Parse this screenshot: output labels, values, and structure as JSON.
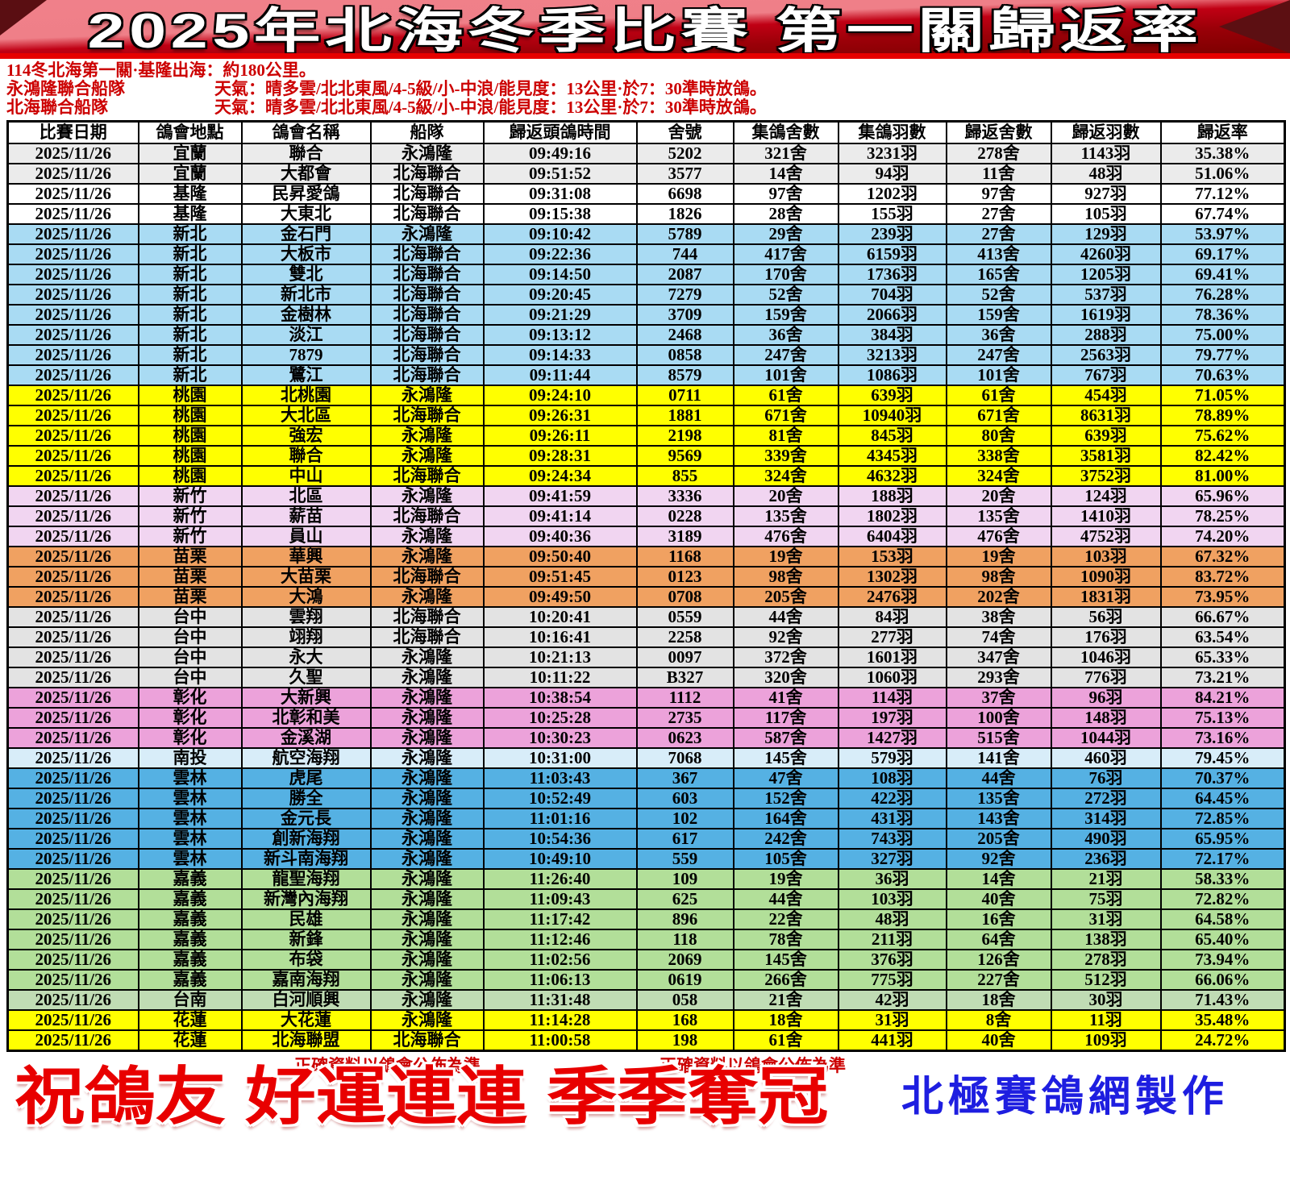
{
  "banner": {
    "title": "2025年北海冬季比賽 第一關歸返率",
    "colors": {
      "ribbon_light": "#ef7f88",
      "ribbon_dark": "#9a0008",
      "strip": "#e60000"
    }
  },
  "info": {
    "line1": "114冬北海第一關·基隆出海：約180公里。",
    "fleets": [
      {
        "name": "永鴻隆聯合船隊",
        "weather": "天氣：晴多雲/北北東風/4-5級/小-中浪/能見度：13公里·於7：30準時放鴿。"
      },
      {
        "name": "北海聯合船隊",
        "weather": "天氣：晴多雲/北北東風/4-5級/小-中浪/能見度：13公里·於7：30準時放鴿。"
      }
    ]
  },
  "region_colors": {
    "宜蘭": "#ebebeb",
    "基隆": "#ffffff",
    "新北": "#a9dbf3",
    "桃園": "#ffff00",
    "新竹": "#f1d5f1",
    "苗栗": "#f0a161",
    "台中": "#e3e3e3",
    "彰化": "#eca2da",
    "南投": "#d8edf9",
    "雲林": "#55b1e3",
    "嘉義": "#b2df99",
    "台南": "#c0dcb4",
    "花蓮": "#ffff00"
  },
  "table": {
    "headers": [
      "比賽日期",
      "鴿會地點",
      "鴿會名稱",
      "船隊",
      "歸返頭鴿時間",
      "舍號",
      "集鴿舍數",
      "集鴿羽數",
      "歸返舍數",
      "歸返羽數",
      "歸返率"
    ],
    "column_keys": [
      "date",
      "region",
      "club",
      "fleet",
      "time",
      "loft",
      "collect_sheds",
      "collect_birds",
      "return_sheds",
      "return_birds",
      "rate"
    ],
    "rows": [
      {
        "date": "2025/11/26",
        "region": "宜蘭",
        "club": "聯合",
        "fleet": "永鴻隆",
        "time": "09:49:16",
        "loft": "5202",
        "collect_sheds": "321舍",
        "collect_birds": "3231羽",
        "return_sheds": "278舍",
        "return_birds": "1143羽",
        "rate": "35.38%"
      },
      {
        "date": "2025/11/26",
        "region": "宜蘭",
        "club": "大都會",
        "fleet": "北海聯合",
        "time": "09:51:52",
        "loft": "3577",
        "collect_sheds": "14舍",
        "collect_birds": "94羽",
        "return_sheds": "11舍",
        "return_birds": "48羽",
        "rate": "51.06%"
      },
      {
        "date": "2025/11/26",
        "region": "基隆",
        "club": "民昇愛鴿",
        "fleet": "北海聯合",
        "time": "09:31:08",
        "loft": "6698",
        "collect_sheds": "97舍",
        "collect_birds": "1202羽",
        "return_sheds": "97舍",
        "return_birds": "927羽",
        "rate": "77.12%"
      },
      {
        "date": "2025/11/26",
        "region": "基隆",
        "club": "大東北",
        "fleet": "北海聯合",
        "time": "09:15:38",
        "loft": "1826",
        "collect_sheds": "28舍",
        "collect_birds": "155羽",
        "return_sheds": "27舍",
        "return_birds": "105羽",
        "rate": "67.74%"
      },
      {
        "date": "2025/11/26",
        "region": "新北",
        "club": "金石門",
        "fleet": "永鴻隆",
        "time": "09:10:42",
        "loft": "5789",
        "collect_sheds": "29舍",
        "collect_birds": "239羽",
        "return_sheds": "27舍",
        "return_birds": "129羽",
        "rate": "53.97%"
      },
      {
        "date": "2025/11/26",
        "region": "新北",
        "club": "大板市",
        "fleet": "北海聯合",
        "time": "09:22:36",
        "loft": "744",
        "collect_sheds": "417舍",
        "collect_birds": "6159羽",
        "return_sheds": "413舍",
        "return_birds": "4260羽",
        "rate": "69.17%"
      },
      {
        "date": "2025/11/26",
        "region": "新北",
        "club": "雙北",
        "fleet": "北海聯合",
        "time": "09:14:50",
        "loft": "2087",
        "collect_sheds": "170舍",
        "collect_birds": "1736羽",
        "return_sheds": "165舍",
        "return_birds": "1205羽",
        "rate": "69.41%"
      },
      {
        "date": "2025/11/26",
        "region": "新北",
        "club": "新北市",
        "fleet": "北海聯合",
        "time": "09:20:45",
        "loft": "7279",
        "collect_sheds": "52舍",
        "collect_birds": "704羽",
        "return_sheds": "52舍",
        "return_birds": "537羽",
        "rate": "76.28%"
      },
      {
        "date": "2025/11/26",
        "region": "新北",
        "club": "金樹林",
        "fleet": "北海聯合",
        "time": "09:21:29",
        "loft": "3709",
        "collect_sheds": "159舍",
        "collect_birds": "2066羽",
        "return_sheds": "159舍",
        "return_birds": "1619羽",
        "rate": "78.36%"
      },
      {
        "date": "2025/11/26",
        "region": "新北",
        "club": "淡江",
        "fleet": "北海聯合",
        "time": "09:13:12",
        "loft": "2468",
        "collect_sheds": "36舍",
        "collect_birds": "384羽",
        "return_sheds": "36舍",
        "return_birds": "288羽",
        "rate": "75.00%"
      },
      {
        "date": "2025/11/26",
        "region": "新北",
        "club": "7879",
        "fleet": "北海聯合",
        "time": "09:14:33",
        "loft": "0858",
        "collect_sheds": "247舍",
        "collect_birds": "3213羽",
        "return_sheds": "247舍",
        "return_birds": "2563羽",
        "rate": "79.77%"
      },
      {
        "date": "2025/11/26",
        "region": "新北",
        "club": "鷺江",
        "fleet": "北海聯合",
        "time": "09:11:44",
        "loft": "8579",
        "collect_sheds": "101舍",
        "collect_birds": "1086羽",
        "return_sheds": "101舍",
        "return_birds": "767羽",
        "rate": "70.63%"
      },
      {
        "date": "2025/11/26",
        "region": "桃園",
        "club": "北桃園",
        "fleet": "永鴻隆",
        "time": "09:24:10",
        "loft": "0711",
        "collect_sheds": "61舍",
        "collect_birds": "639羽",
        "return_sheds": "61舍",
        "return_birds": "454羽",
        "rate": "71.05%"
      },
      {
        "date": "2025/11/26",
        "region": "桃園",
        "club": "大北區",
        "fleet": "北海聯合",
        "time": "09:26:31",
        "loft": "1881",
        "collect_sheds": "671舍",
        "collect_birds": "10940羽",
        "return_sheds": "671舍",
        "return_birds": "8631羽",
        "rate": "78.89%"
      },
      {
        "date": "2025/11/26",
        "region": "桃園",
        "club": "強宏",
        "fleet": "永鴻隆",
        "time": "09:26:11",
        "loft": "2198",
        "collect_sheds": "81舍",
        "collect_birds": "845羽",
        "return_sheds": "80舍",
        "return_birds": "639羽",
        "rate": "75.62%"
      },
      {
        "date": "2025/11/26",
        "region": "桃園",
        "club": "聯合",
        "fleet": "永鴻隆",
        "time": "09:28:31",
        "loft": "9569",
        "collect_sheds": "339舍",
        "collect_birds": "4345羽",
        "return_sheds": "338舍",
        "return_birds": "3581羽",
        "rate": "82.42%"
      },
      {
        "date": "2025/11/26",
        "region": "桃園",
        "club": "中山",
        "fleet": "北海聯合",
        "time": "09:24:34",
        "loft": "855",
        "collect_sheds": "324舍",
        "collect_birds": "4632羽",
        "return_sheds": "324舍",
        "return_birds": "3752羽",
        "rate": "81.00%"
      },
      {
        "date": "2025/11/26",
        "region": "新竹",
        "club": "北區",
        "fleet": "永鴻隆",
        "time": "09:41:59",
        "loft": "3336",
        "collect_sheds": "20舍",
        "collect_birds": "188羽",
        "return_sheds": "20舍",
        "return_birds": "124羽",
        "rate": "65.96%"
      },
      {
        "date": "2025/11/26",
        "region": "新竹",
        "club": "薪苗",
        "fleet": "北海聯合",
        "time": "09:41:14",
        "loft": "0228",
        "collect_sheds": "135舍",
        "collect_birds": "1802羽",
        "return_sheds": "135舍",
        "return_birds": "1410羽",
        "rate": "78.25%"
      },
      {
        "date": "2025/11/26",
        "region": "新竹",
        "club": "員山",
        "fleet": "永鴻隆",
        "time": "09:40:36",
        "loft": "3189",
        "collect_sheds": "476舍",
        "collect_birds": "6404羽",
        "return_sheds": "476舍",
        "return_birds": "4752羽",
        "rate": "74.20%"
      },
      {
        "date": "2025/11/26",
        "region": "苗栗",
        "club": "華興",
        "fleet": "永鴻隆",
        "time": "09:50:40",
        "loft": "1168",
        "collect_sheds": "19舍",
        "collect_birds": "153羽",
        "return_sheds": "19舍",
        "return_birds": "103羽",
        "rate": "67.32%"
      },
      {
        "date": "2025/11/26",
        "region": "苗栗",
        "club": "大苗栗",
        "fleet": "北海聯合",
        "time": "09:51:45",
        "loft": "0123",
        "collect_sheds": "98舍",
        "collect_birds": "1302羽",
        "return_sheds": "98舍",
        "return_birds": "1090羽",
        "rate": "83.72%"
      },
      {
        "date": "2025/11/26",
        "region": "苗栗",
        "club": "大鴻",
        "fleet": "永鴻隆",
        "time": "09:49:50",
        "loft": "0708",
        "collect_sheds": "205舍",
        "collect_birds": "2476羽",
        "return_sheds": "202舍",
        "return_birds": "1831羽",
        "rate": "73.95%"
      },
      {
        "date": "2025/11/26",
        "region": "台中",
        "club": "雲翔",
        "fleet": "北海聯合",
        "time": "10:20:41",
        "loft": "0559",
        "collect_sheds": "44舍",
        "collect_birds": "84羽",
        "return_sheds": "38舍",
        "return_birds": "56羽",
        "rate": "66.67%"
      },
      {
        "date": "2025/11/26",
        "region": "台中",
        "club": "翊翔",
        "fleet": "北海聯合",
        "time": "10:16:41",
        "loft": "2258",
        "collect_sheds": "92舍",
        "collect_birds": "277羽",
        "return_sheds": "74舍",
        "return_birds": "176羽",
        "rate": "63.54%"
      },
      {
        "date": "2025/11/26",
        "region": "台中",
        "club": "永大",
        "fleet": "永鴻隆",
        "time": "10:21:13",
        "loft": "0097",
        "collect_sheds": "372舍",
        "collect_birds": "1601羽",
        "return_sheds": "347舍",
        "return_birds": "1046羽",
        "rate": "65.33%"
      },
      {
        "date": "2025/11/26",
        "region": "台中",
        "club": "久聖",
        "fleet": "永鴻隆",
        "time": "10:11:22",
        "loft": "B327",
        "collect_sheds": "320舍",
        "collect_birds": "1060羽",
        "return_sheds": "293舍",
        "return_birds": "776羽",
        "rate": "73.21%"
      },
      {
        "date": "2025/11/26",
        "region": "彰化",
        "club": "大新興",
        "fleet": "永鴻隆",
        "time": "10:38:54",
        "loft": "1112",
        "collect_sheds": "41舍",
        "collect_birds": "114羽",
        "return_sheds": "37舍",
        "return_birds": "96羽",
        "rate": "84.21%"
      },
      {
        "date": "2025/11/26",
        "region": "彰化",
        "club": "北彰和美",
        "fleet": "永鴻隆",
        "time": "10:25:28",
        "loft": "2735",
        "collect_sheds": "117舍",
        "collect_birds": "197羽",
        "return_sheds": "100舍",
        "return_birds": "148羽",
        "rate": "75.13%"
      },
      {
        "date": "2025/11/26",
        "region": "彰化",
        "club": "金溪湖",
        "fleet": "永鴻隆",
        "time": "10:30:23",
        "loft": "0623",
        "collect_sheds": "587舍",
        "collect_birds": "1427羽",
        "return_sheds": "515舍",
        "return_birds": "1044羽",
        "rate": "73.16%"
      },
      {
        "date": "2025/11/26",
        "region": "南投",
        "club": "航空海翔",
        "fleet": "永鴻隆",
        "time": "10:31:00",
        "loft": "7068",
        "collect_sheds": "145舍",
        "collect_birds": "579羽",
        "return_sheds": "141舍",
        "return_birds": "460羽",
        "rate": "79.45%"
      },
      {
        "date": "2025/11/26",
        "region": "雲林",
        "club": "虎尾",
        "fleet": "永鴻隆",
        "time": "11:03:43",
        "loft": "367",
        "collect_sheds": "47舍",
        "collect_birds": "108羽",
        "return_sheds": "44舍",
        "return_birds": "76羽",
        "rate": "70.37%"
      },
      {
        "date": "2025/11/26",
        "region": "雲林",
        "club": "勝全",
        "fleet": "永鴻隆",
        "time": "10:52:49",
        "loft": "603",
        "collect_sheds": "152舍",
        "collect_birds": "422羽",
        "return_sheds": "135舍",
        "return_birds": "272羽",
        "rate": "64.45%"
      },
      {
        "date": "2025/11/26",
        "region": "雲林",
        "club": "金元長",
        "fleet": "永鴻隆",
        "time": "11:01:16",
        "loft": "102",
        "collect_sheds": "164舍",
        "collect_birds": "431羽",
        "return_sheds": "143舍",
        "return_birds": "314羽",
        "rate": "72.85%"
      },
      {
        "date": "2025/11/26",
        "region": "雲林",
        "club": "創新海翔",
        "fleet": "永鴻隆",
        "time": "10:54:36",
        "loft": "617",
        "collect_sheds": "242舍",
        "collect_birds": "743羽",
        "return_sheds": "205舍",
        "return_birds": "490羽",
        "rate": "65.95%"
      },
      {
        "date": "2025/11/26",
        "region": "雲林",
        "club": "新斗南海翔",
        "fleet": "永鴻隆",
        "time": "10:49:10",
        "loft": "559",
        "collect_sheds": "105舍",
        "collect_birds": "327羽",
        "return_sheds": "92舍",
        "return_birds": "236羽",
        "rate": "72.17%"
      },
      {
        "date": "2025/11/26",
        "region": "嘉義",
        "club": "龍聖海翔",
        "fleet": "永鴻隆",
        "time": "11:26:40",
        "loft": "109",
        "collect_sheds": "19舍",
        "collect_birds": "36羽",
        "return_sheds": "14舍",
        "return_birds": "21羽",
        "rate": "58.33%"
      },
      {
        "date": "2025/11/26",
        "region": "嘉義",
        "club": "新灣內海翔",
        "fleet": "永鴻隆",
        "time": "11:09:43",
        "loft": "625",
        "collect_sheds": "44舍",
        "collect_birds": "103羽",
        "return_sheds": "40舍",
        "return_birds": "75羽",
        "rate": "72.82%"
      },
      {
        "date": "2025/11/26",
        "region": "嘉義",
        "club": "民雄",
        "fleet": "永鴻隆",
        "time": "11:17:42",
        "loft": "896",
        "collect_sheds": "22舍",
        "collect_birds": "48羽",
        "return_sheds": "16舍",
        "return_birds": "31羽",
        "rate": "64.58%"
      },
      {
        "date": "2025/11/26",
        "region": "嘉義",
        "club": "新鋒",
        "fleet": "永鴻隆",
        "time": "11:12:46",
        "loft": "118",
        "collect_sheds": "78舍",
        "collect_birds": "211羽",
        "return_sheds": "64舍",
        "return_birds": "138羽",
        "rate": "65.40%"
      },
      {
        "date": "2025/11/26",
        "region": "嘉義",
        "club": "布袋",
        "fleet": "永鴻隆",
        "time": "11:02:56",
        "loft": "2069",
        "collect_sheds": "145舍",
        "collect_birds": "376羽",
        "return_sheds": "126舍",
        "return_birds": "278羽",
        "rate": "73.94%"
      },
      {
        "date": "2025/11/26",
        "region": "嘉義",
        "club": "嘉南海翔",
        "fleet": "永鴻隆",
        "time": "11:06:13",
        "loft": "0619",
        "collect_sheds": "266舍",
        "collect_birds": "775羽",
        "return_sheds": "227舍",
        "return_birds": "512羽",
        "rate": "66.06%"
      },
      {
        "date": "2025/11/26",
        "region": "台南",
        "club": "白河順興",
        "fleet": "永鴻隆",
        "time": "11:31:48",
        "loft": "058",
        "collect_sheds": "21舍",
        "collect_birds": "42羽",
        "return_sheds": "18舍",
        "return_birds": "30羽",
        "rate": "71.43%"
      },
      {
        "date": "2025/11/26",
        "region": "花蓮",
        "club": "大花蓮",
        "fleet": "永鴻隆",
        "time": "11:14:28",
        "loft": "168",
        "collect_sheds": "18舍",
        "collect_birds": "31羽",
        "return_sheds": "8舍",
        "return_birds": "11羽",
        "rate": "35.48%"
      },
      {
        "date": "2025/11/26",
        "region": "花蓮",
        "club": "北海聯盟",
        "fleet": "北海聯合",
        "time": "11:00:58",
        "loft": "198",
        "collect_sheds": "61舍",
        "collect_birds": "441羽",
        "return_sheds": "40舍",
        "return_birds": "109羽",
        "rate": "24.72%"
      }
    ]
  },
  "footer": {
    "note": "正確資料以鴿會公佈為準",
    "blessing": "祝鴿友 好運連連 季季奪冠",
    "credit": "北極賽鴿網製作",
    "blessing_color": "#e80000",
    "credit_color": "#1e1ee0"
  }
}
